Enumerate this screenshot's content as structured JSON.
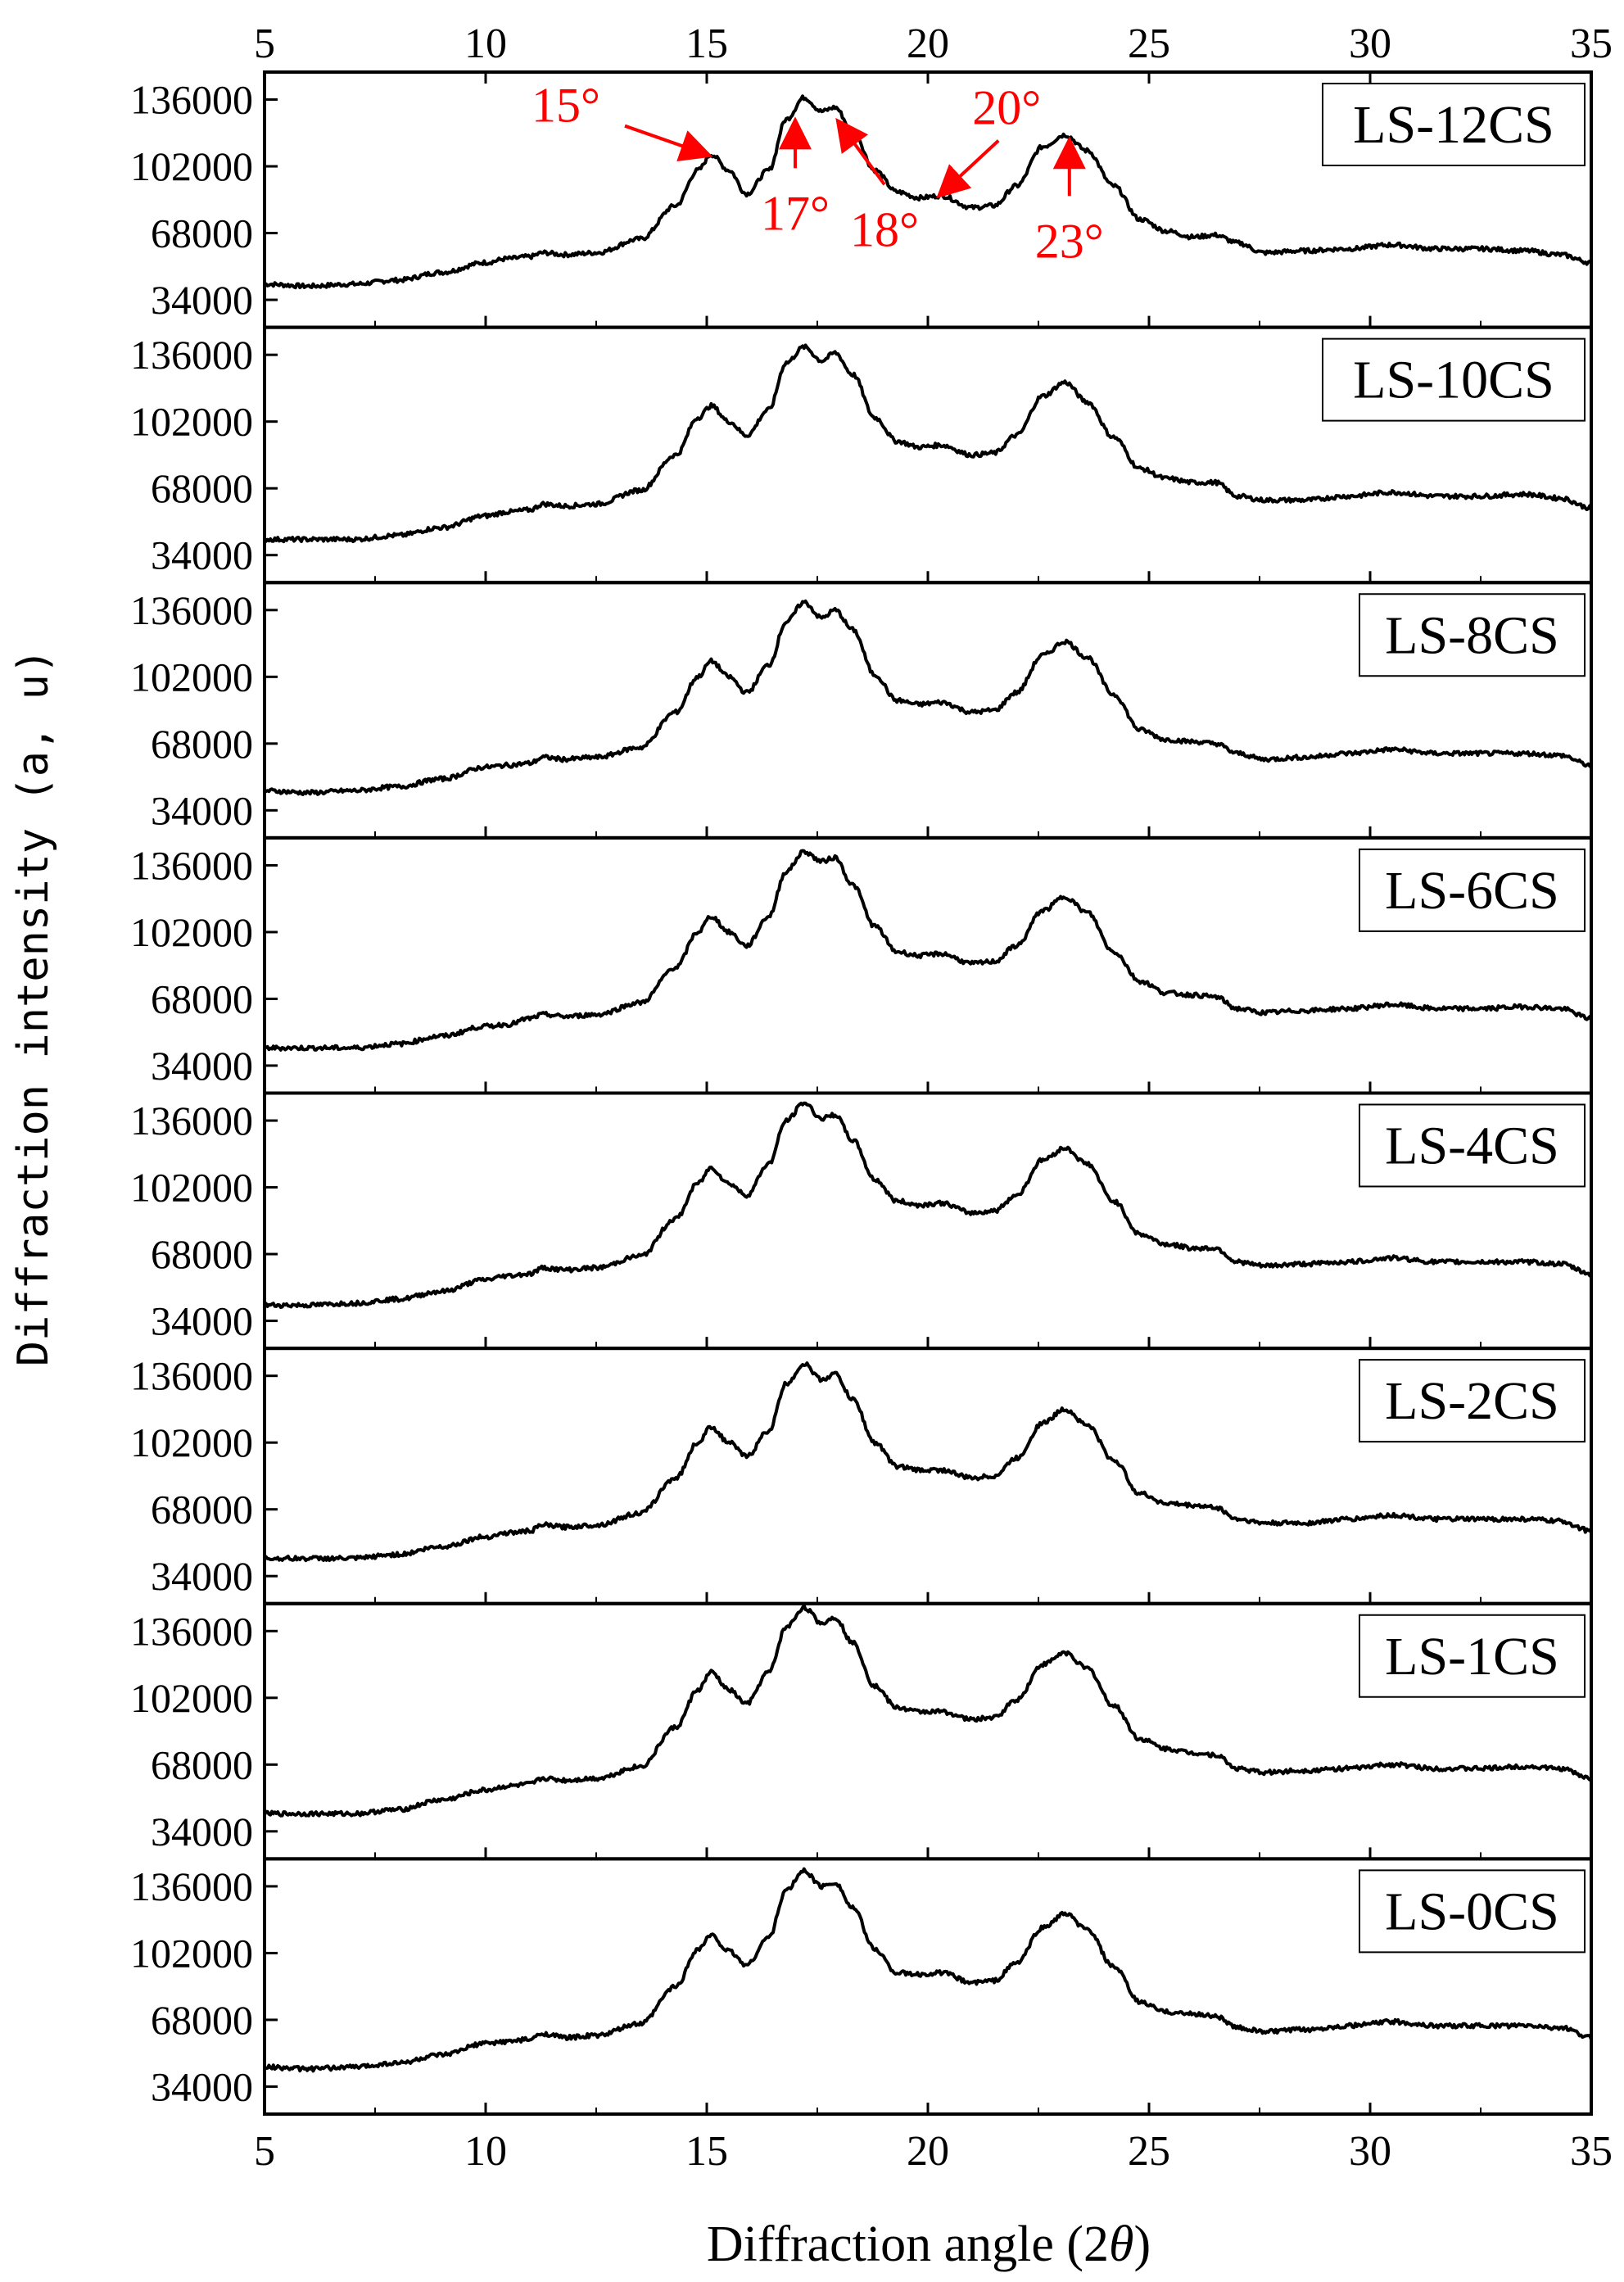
{
  "chart_data": {
    "type": "line",
    "title": "",
    "xlabel_prefix": "Diffraction angle (2",
    "xlabel_symbol": "θ",
    "xlabel_suffix": ")",
    "ylabel": "Diffraction intensity (a, u)",
    "xlim": [
      5,
      35
    ],
    "ylim": [
      20000,
      150000
    ],
    "x_ticks": [
      5,
      10,
      15,
      20,
      25,
      30,
      35
    ],
    "x_tick_labels": [
      "5",
      "10",
      "15",
      "20",
      "25",
      "30",
      "35"
    ],
    "y_ticks": [
      34000,
      68000,
      102000,
      136000
    ],
    "y_tick_labels": [
      "34000",
      "68000",
      "102000",
      "136000"
    ],
    "grid": false,
    "line_color": "#000000",
    "annotation_color": "#ff0000",
    "panels": [
      {
        "name": "LS-12CS",
        "x": [
          5,
          6,
          7,
          8,
          9,
          10,
          10.5,
          11,
          11.3,
          11.8,
          12.5,
          13.5,
          14.3,
          14.8,
          15.1,
          15.5,
          15.9,
          16.4,
          16.8,
          17.2,
          17.6,
          17.9,
          18.3,
          18.8,
          19.3,
          19.8,
          20.3,
          21,
          21.5,
          22,
          22.6,
          23.1,
          23.6,
          24.2,
          24.8,
          25.4,
          26,
          26.5,
          27,
          27.6,
          28.5,
          29.5,
          30.5,
          31.5,
          32.5,
          33.5,
          34.3,
          35
        ],
        "y": [
          42000,
          41000,
          42000,
          44000,
          48000,
          53000,
          55000,
          56000,
          58000,
          57000,
          58000,
          65000,
          82000,
          100000,
          108000,
          100000,
          88000,
          100000,
          126000,
          137000,
          130000,
          132000,
          120000,
          100000,
          89000,
          86000,
          87000,
          81000,
          82000,
          92000,
          112000,
          118000,
          110000,
          92000,
          75000,
          69000,
          66000,
          67000,
          63000,
          58000,
          59000,
          60000,
          62000,
          60000,
          60000,
          59000,
          57000,
          53000
        ]
      },
      {
        "name": "LS-10CS",
        "x": [
          5,
          6,
          7,
          8,
          9,
          10,
          10.5,
          11,
          11.3,
          11.8,
          12.5,
          13.5,
          14.3,
          14.8,
          15.1,
          15.5,
          15.9,
          16.4,
          16.8,
          17.2,
          17.6,
          17.9,
          18.3,
          18.8,
          19.3,
          19.8,
          20.3,
          21,
          21.5,
          22,
          22.6,
          23.1,
          23.6,
          24.2,
          24.8,
          25.4,
          26,
          26.5,
          27,
          27.6,
          28.5,
          29.5,
          30.5,
          31.5,
          32.5,
          33.5,
          34.3,
          35
        ],
        "y": [
          42000,
          42000,
          42000,
          44000,
          48000,
          54000,
          56000,
          57000,
          60000,
          59000,
          60000,
          67000,
          85000,
          104000,
          110000,
          102000,
          95000,
          108000,
          132000,
          140000,
          133000,
          137000,
          126000,
          104000,
          92000,
          89000,
          90000,
          85000,
          86000,
          95000,
          115000,
          122000,
          112000,
          94000,
          78000,
          73000,
          71000,
          71000,
          64000,
          62000,
          62000,
          64000,
          66000,
          64000,
          64000,
          65000,
          63000,
          58000
        ]
      },
      {
        "name": "LS-8CS",
        "x": [
          5,
          6,
          7,
          8,
          9,
          10,
          10.5,
          11,
          11.3,
          11.8,
          12.5,
          13.5,
          14.3,
          14.8,
          15.1,
          15.5,
          15.9,
          16.4,
          16.8,
          17.2,
          17.6,
          17.9,
          18.3,
          18.8,
          19.3,
          19.8,
          20.3,
          21,
          21.5,
          22,
          22.6,
          23.1,
          23.6,
          24.2,
          24.8,
          25.4,
          26,
          26.5,
          27,
          27.6,
          28.5,
          29.5,
          30.5,
          31.5,
          32.5,
          33.5,
          34.3,
          35
        ],
        "y": [
          44000,
          43000,
          44000,
          46000,
          50000,
          56000,
          57000,
          58000,
          61000,
          60000,
          61000,
          66000,
          84000,
          102000,
          110000,
          102000,
          94000,
          108000,
          130000,
          140000,
          132000,
          136000,
          126000,
          103000,
          90000,
          88000,
          89000,
          84000,
          85000,
          94000,
          113000,
          120000,
          112000,
          93000,
          75000,
          70000,
          69000,
          68000,
          63000,
          60000,
          61000,
          63000,
          65000,
          63000,
          63000,
          63000,
          62000,
          57000
        ]
      },
      {
        "name": "LS-6CS",
        "x": [
          5,
          6,
          7,
          8,
          9,
          10,
          10.5,
          11,
          11.3,
          11.8,
          12.5,
          13.5,
          14.3,
          14.8,
          15.1,
          15.5,
          15.9,
          16.4,
          16.8,
          17.2,
          17.6,
          17.9,
          18.3,
          18.8,
          19.3,
          19.8,
          20.3,
          21,
          21.5,
          22,
          22.6,
          23.1,
          23.6,
          24.2,
          24.8,
          25.4,
          26,
          26.5,
          27,
          27.6,
          28.5,
          29.5,
          30.5,
          31.5,
          32.5,
          33.5,
          34.3,
          35
        ],
        "y": [
          43000,
          43000,
          43000,
          45000,
          49000,
          54000,
          55000,
          58000,
          60000,
          59000,
          60000,
          66000,
          84000,
          102000,
          110000,
          102000,
          95000,
          110000,
          133000,
          143000,
          138000,
          140000,
          126000,
          105000,
          92000,
          90000,
          91000,
          86000,
          87000,
          95000,
          113000,
          120000,
          112000,
          92000,
          77000,
          71000,
          70000,
          69000,
          63000,
          61000,
          62000,
          63000,
          65000,
          63000,
          63000,
          64000,
          63000,
          58000
        ]
      },
      {
        "name": "LS-4CS",
        "x": [
          5,
          6,
          7,
          8,
          9,
          10,
          10.5,
          11,
          11.3,
          11.8,
          12.5,
          13.5,
          14.3,
          14.8,
          15.1,
          15.5,
          15.9,
          16.4,
          16.8,
          17.2,
          17.6,
          17.9,
          18.3,
          18.8,
          19.3,
          19.8,
          20.3,
          21,
          21.5,
          22,
          22.6,
          23.1,
          23.6,
          24.2,
          24.8,
          25.4,
          26,
          26.5,
          27,
          27.6,
          28.5,
          29.5,
          30.5,
          31.5,
          32.5,
          33.5,
          34.3,
          35
        ],
        "y": [
          42000,
          42000,
          43000,
          45000,
          49000,
          55000,
          57000,
          58000,
          61000,
          60000,
          61000,
          67000,
          86000,
          104000,
          112000,
          104000,
          98000,
          114000,
          136000,
          145000,
          137000,
          139000,
          126000,
          106000,
          95000,
          93000,
          94000,
          89000,
          90000,
          98000,
          116000,
          122000,
          114000,
          95000,
          78000,
          73000,
          71000,
          71000,
          64000,
          62000,
          63000,
          64000,
          66000,
          64000,
          64000,
          64000,
          63000,
          58000
        ]
      },
      {
        "name": "LS-2CS",
        "x": [
          5,
          6,
          7,
          8,
          9,
          10,
          10.5,
          11,
          11.3,
          11.8,
          12.5,
          13.5,
          14.3,
          14.8,
          15.1,
          15.5,
          15.9,
          16.4,
          16.8,
          17.2,
          17.6,
          17.9,
          18.3,
          18.8,
          19.3,
          19.8,
          20.3,
          21,
          21.5,
          22,
          22.6,
          23.1,
          23.6,
          24.2,
          24.8,
          25.4,
          26,
          26.5,
          27,
          27.6,
          28.5,
          29.5,
          30.5,
          31.5,
          32.5,
          33.5,
          34.3,
          35
        ],
        "y": [
          43000,
          43000,
          43000,
          45000,
          49000,
          54000,
          56000,
          57000,
          60000,
          59000,
          60000,
          66000,
          84000,
          102000,
          110000,
          102000,
          95000,
          108000,
          132000,
          142000,
          134000,
          137000,
          124000,
          102000,
          90000,
          88000,
          88000,
          84000,
          85000,
          94000,
          112000,
          119000,
          111000,
          93000,
          76000,
          71000,
          70000,
          69000,
          63000,
          61000,
          61000,
          63000,
          65000,
          63000,
          63000,
          63000,
          62000,
          57000
        ]
      },
      {
        "name": "LS-1CS",
        "x": [
          5,
          6,
          7,
          8,
          9,
          10,
          10.5,
          11,
          11.3,
          11.8,
          12.5,
          13.5,
          14.3,
          14.8,
          15.1,
          15.5,
          15.9,
          16.4,
          16.8,
          17.2,
          17.6,
          17.9,
          18.3,
          18.8,
          19.3,
          19.8,
          20.3,
          21,
          21.5,
          22,
          22.6,
          23.1,
          23.6,
          24.2,
          24.8,
          25.4,
          26,
          26.5,
          27,
          27.6,
          28.5,
          29.5,
          30.5,
          31.5,
          32.5,
          33.5,
          34.3,
          35
        ],
        "y": [
          43000,
          43000,
          43000,
          45000,
          50000,
          55000,
          57000,
          58000,
          61000,
          60000,
          61000,
          67000,
          87000,
          106000,
          115000,
          106000,
          99000,
          115000,
          138000,
          148000,
          140000,
          143000,
          130000,
          108000,
          97000,
          95000,
          95000,
          91000,
          92000,
          101000,
          119000,
          125000,
          117000,
          98000,
          81000,
          76000,
          74000,
          73000,
          66000,
          64000,
          65000,
          66000,
          68000,
          66000,
          66000,
          67000,
          66000,
          61000
        ]
      },
      {
        "name": "LS-0CS",
        "x": [
          5,
          6,
          7,
          8,
          9,
          10,
          10.5,
          11,
          11.3,
          11.8,
          12.5,
          13.5,
          14.3,
          14.8,
          15.1,
          15.5,
          15.9,
          16.4,
          16.8,
          17.2,
          17.6,
          17.9,
          18.3,
          18.8,
          19.3,
          19.8,
          20.3,
          21,
          21.5,
          22,
          22.6,
          23.1,
          23.6,
          24.2,
          24.8,
          25.4,
          26,
          26.5,
          27,
          27.6,
          28.5,
          29.5,
          30.5,
          31.5,
          32.5,
          33.5,
          34.3,
          35
        ],
        "y": [
          44000,
          43000,
          44000,
          46000,
          50000,
          56000,
          57000,
          58000,
          61000,
          59000,
          60000,
          66000,
          85000,
          104000,
          111000,
          103000,
          96000,
          110000,
          134000,
          144000,
          136000,
          138000,
          125000,
          104000,
          92000,
          91000,
          92000,
          87000,
          88000,
          97000,
          115000,
          122000,
          114000,
          95000,
          77000,
          72000,
          71000,
          70000,
          64000,
          62000,
          63000,
          65000,
          67000,
          65000,
          65000,
          65000,
          64000,
          59000
        ]
      }
    ],
    "annotations": [
      {
        "text": "15°",
        "target": [
          15.0,
          108000
        ],
        "label_anchor": "end"
      },
      {
        "text": "17°",
        "target": [
          17.0,
          124000
        ],
        "label_anchor": "middle"
      },
      {
        "text": "18°",
        "target": [
          18.0,
          124000
        ],
        "label_anchor": "middle"
      },
      {
        "text": "20°",
        "target": [
          20.3,
          88000
        ],
        "label_anchor": "middle"
      },
      {
        "text": "23°",
        "target": [
          23.2,
          114000
        ],
        "label_anchor": "middle"
      }
    ]
  }
}
